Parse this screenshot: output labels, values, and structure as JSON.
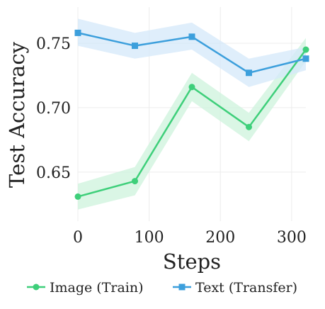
{
  "chart_data": {
    "type": "line",
    "title": "",
    "xlabel": "Steps",
    "ylabel": "Test Accuracy",
    "xlim": [
      0,
      320
    ],
    "ylim": [
      0.612,
      0.778
    ],
    "xticks": [
      0,
      100,
      200,
      300
    ],
    "xtick_labels": [
      "0",
      "100",
      "200",
      "300"
    ],
    "yticks": [
      0.65,
      0.7,
      0.75
    ],
    "ytick_labels": [
      "0.65",
      "0.70",
      "0.75"
    ],
    "grid": true,
    "legend_position": "bottom",
    "series": [
      {
        "name": "Image (Train)",
        "color": "#3ecf7a",
        "band_color": "#cdf3dc",
        "marker": "circle",
        "x": [
          0,
          80,
          160,
          240,
          320
        ],
        "y": [
          0.631,
          0.643,
          0.716,
          0.685,
          0.745
        ],
        "lower": [
          0.621,
          0.632,
          0.705,
          0.674,
          0.736
        ],
        "upper": [
          0.641,
          0.654,
          0.727,
          0.696,
          0.754
        ]
      },
      {
        "name": "Text (Transfer)",
        "color": "#3c9fdc",
        "band_color": "#d4e8fa",
        "marker": "square",
        "x": [
          0,
          80,
          160,
          240,
          320
        ],
        "y": [
          0.758,
          0.748,
          0.755,
          0.727,
          0.738
        ],
        "lower": [
          0.748,
          0.738,
          0.745,
          0.716,
          0.729
        ],
        "upper": [
          0.769,
          0.758,
          0.766,
          0.738,
          0.747
        ]
      }
    ]
  }
}
